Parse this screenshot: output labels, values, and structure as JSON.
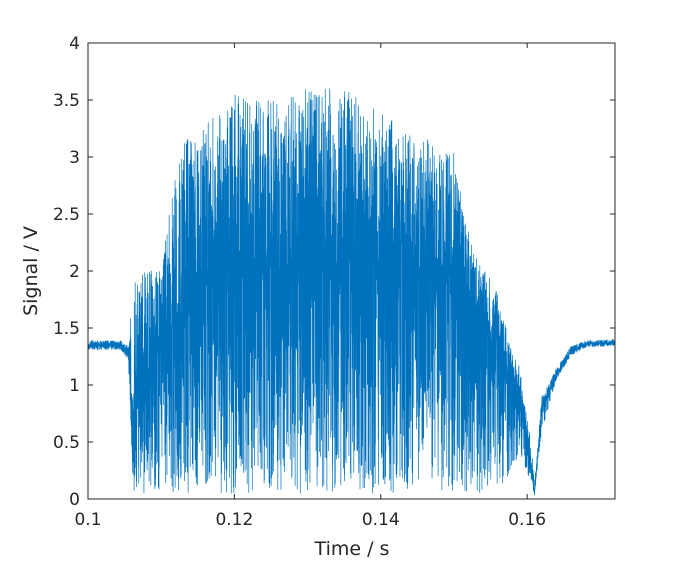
{
  "chart_data": {
    "type": "line",
    "title": "",
    "xlabel": "Time / s",
    "ylabel": "Signal / V",
    "xlim": [
      0.1,
      0.172
    ],
    "ylim": [
      0,
      4
    ],
    "xticks": [
      0.1,
      0.12,
      0.14,
      0.16
    ],
    "xtick_labels": [
      "0.1",
      "0.12",
      "0.14",
      "0.16"
    ],
    "yticks": [
      0,
      0.5,
      1,
      1.5,
      2,
      2.5,
      3,
      3.5,
      4
    ],
    "ytick_labels": [
      "0",
      "0.5",
      "1",
      "1.5",
      "2",
      "2.5",
      "3",
      "3.5",
      "4"
    ],
    "grid": false,
    "legend": "none",
    "line_color": "#0072BD",
    "series": [
      {
        "x": [
          0.1,
          0.1045,
          0.1055,
          0.1062,
          0.107,
          0.108,
          0.11,
          0.112,
          0.1135,
          0.115,
          0.12,
          0.125,
          0.13,
          0.135,
          0.14,
          0.145,
          0.15,
          0.1525,
          0.154,
          0.156,
          0.1575,
          0.159,
          0.1605,
          0.161,
          0.162,
          0.164,
          0.166,
          0.168,
          0.172
        ],
        "y": [
          1.35,
          1.35,
          1.28,
          0.45,
          1.2,
          1.1,
          1.35,
          1.6,
          1.85,
          2.0,
          2.05,
          2.05,
          2.05,
          2.05,
          2.05,
          2.0,
          1.95,
          1.7,
          1.5,
          1.3,
          1.1,
          0.9,
          0.3,
          0.05,
          0.8,
          1.1,
          1.3,
          1.36,
          1.37
        ],
        "noise_upper": [
          0.04,
          0.04,
          0.06,
          1.5,
          0.8,
          0.9,
          0.65,
          1.3,
          1.35,
          1.2,
          1.5,
          1.45,
          1.55,
          1.55,
          1.35,
          1.2,
          1.1,
          0.5,
          0.55,
          0.5,
          0.3,
          0.25,
          0.2,
          0.1,
          0.1,
          0.05,
          0.04,
          0.03,
          0.03
        ],
        "noise_lower": [
          0.04,
          0.04,
          0.06,
          0.4,
          1.15,
          1.05,
          1.3,
          1.55,
          1.8,
          1.95,
          2.0,
          2.0,
          2.0,
          2.0,
          2.0,
          1.95,
          1.9,
          1.65,
          1.45,
          1.2,
          0.9,
          0.5,
          0.15,
          0.02,
          0.2,
          0.05,
          0.04,
          0.03,
          0.03
        ]
      }
    ]
  }
}
